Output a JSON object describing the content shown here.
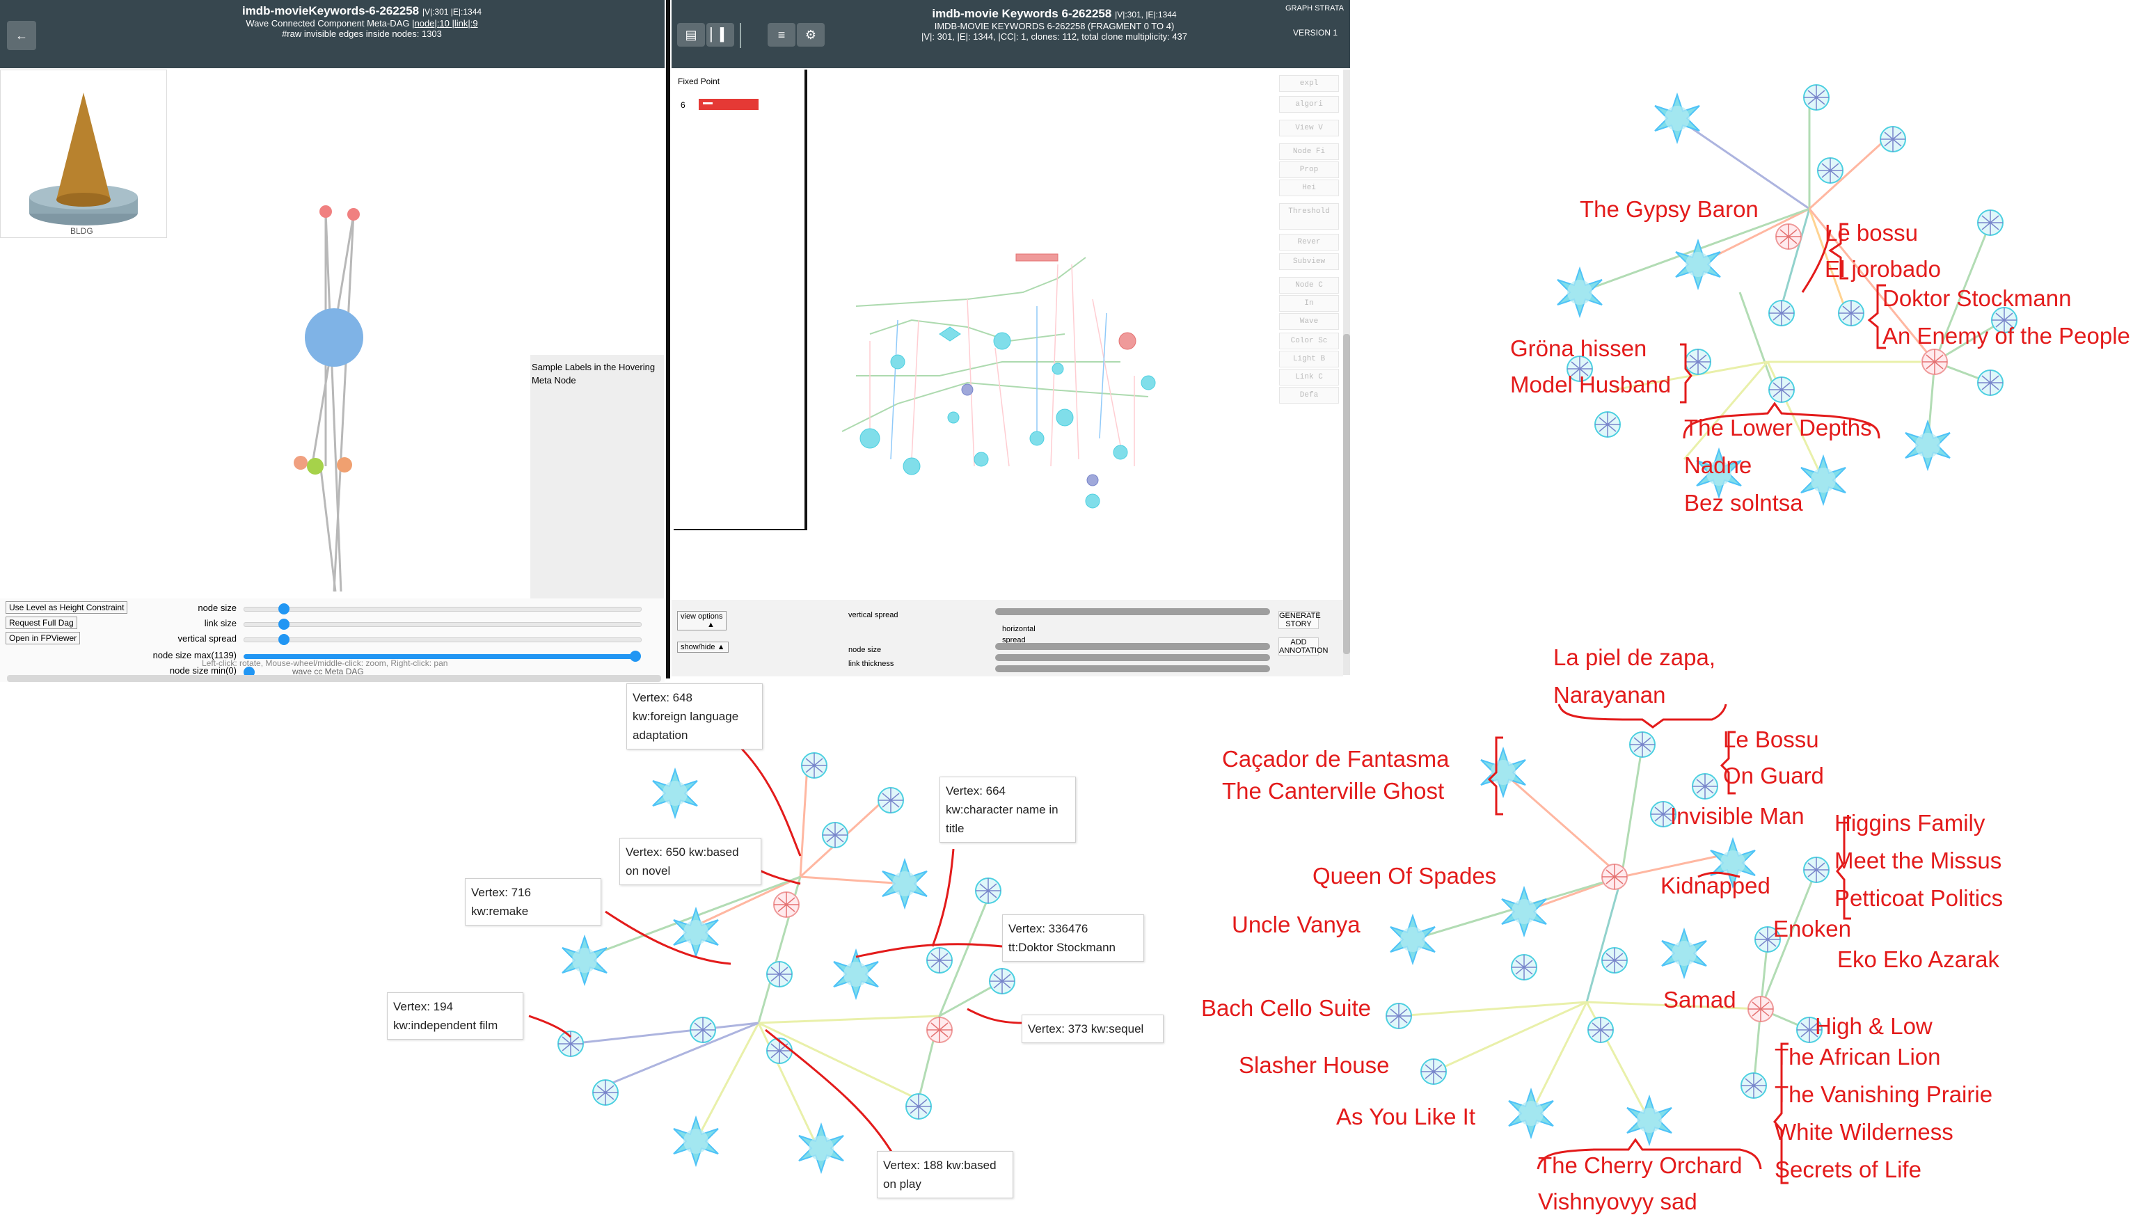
{
  "left_panel": {
    "back_icon": "arrow-left-icon",
    "title": "imdb-movieKeywords-6-262258",
    "title_stats": "|V|:301 |E|:1344",
    "subtitle": "Wave Connected Component Meta-DAG",
    "subtitle_links": "|node|:10  |link|:9",
    "raw_edges": "#raw invisible edges inside nodes: 1303",
    "building_label": "BLDG",
    "hover_label": "Sample Labels in the Hovering Meta Node",
    "buttons": [
      "Use Level as Height Constraint",
      "Request Full Dag",
      "Open in FPViewer"
    ],
    "sliders": [
      {
        "label": "node size",
        "value": 0.06
      },
      {
        "label": "link size",
        "value": 0.06
      },
      {
        "label": "vertical spread",
        "value": 0.06
      },
      {
        "label": "node size max(1139)",
        "value": 1.0
      },
      {
        "label": "node size min(0)",
        "value": 0.0
      }
    ],
    "status_line": "Left-click: rotate, Mouse-wheel/middle-click: zoom, Right-click: pan",
    "footer_line": "wave cc Meta DAG"
  },
  "right_panel": {
    "title": "imdb-movie Keywords 6-262258",
    "title_stats": "|V|:301, |E|:1344",
    "line2": "IMDB-MOVIE KEYWORDS 6-262258 (FRAGMENT 0 TO 4)",
    "line3": "|V|: 301, |E|: 1344, |CC|: 1, clones: 112, total clone multiplicity: 437",
    "strata_title": "GRAPH STRATA",
    "version": "VERSION 1",
    "toolbar_icons": [
      "database-icon",
      "chart-icon",
      "list-icon",
      "gear-icon"
    ],
    "fixed_point_title": "Fixed Point",
    "fixed_point_row": "6",
    "side_buttons": [
      "expl",
      "algori",
      "View V",
      "Node Fi",
      "Prop",
      "Hei",
      "Threshold",
      "Rever",
      "Subview",
      "Node C",
      "In",
      "Wave",
      "Color Sc",
      "Light B",
      "Link C",
      "Defa"
    ],
    "view_options": "view options",
    "show_hide": "show/hide",
    "bottom_labels": [
      "vertical spread",
      "node size",
      "link thickness"
    ],
    "bottom_labels2": [
      "horizontal spread"
    ],
    "generate_story": "GENERATE STORY",
    "add_annotation": "ADD ANNOTATION"
  },
  "tooltips": [
    {
      "id": "t648",
      "text": [
        "Vertex: 648",
        "kw:foreign language",
        "adaptation"
      ]
    },
    {
      "id": "t664",
      "text": [
        "Vertex: 664",
        "kw:character name in",
        "title"
      ]
    },
    {
      "id": "t650",
      "text": [
        "Vertex: 650 kw:based",
        "on novel"
      ]
    },
    {
      "id": "t716",
      "text": [
        "Vertex: 716",
        "kw:remake"
      ]
    },
    {
      "id": "t336476",
      "text": [
        "Vertex: 336476",
        "tt:Doktor Stockmann"
      ]
    },
    {
      "id": "t194",
      "text": [
        "Vertex: 194",
        "kw:independent film"
      ]
    },
    {
      "id": "t373",
      "text": [
        "Vertex: 373 kw:sequel"
      ]
    },
    {
      "id": "t188",
      "text": [
        "Vertex: 188 kw:based",
        "on play"
      ]
    }
  ],
  "annotations_top": [
    "The Gypsy Baron",
    "Le bossu",
    "El jorobado",
    "Doktor Stockmann",
    "An Enemy of the People",
    "Gröna hissen",
    "Model Husband",
    "The Lower Depths",
    "Nadne",
    "Bez solntsa"
  ],
  "annotations_bottom": [
    "La piel de zapa,",
    "Narayanan",
    "Caçador de Fantasma",
    "The Canterville Ghost",
    "Le Bossu",
    "On Guard",
    "Invisible Man",
    "Higgins Family",
    "Meet the Missus",
    "Petticoat Politics",
    "Queen Of Spades",
    "Kidnapped",
    "Uncle Vanya",
    "Enoken",
    "Eko Eko Azarak",
    "Bach Cello Suite",
    "Samad",
    "High & Low",
    "The African Lion",
    "The Vanishing Prairie",
    "Slasher House",
    "White Wilderness",
    "As You Like It",
    "Secrets of Life",
    "The Cherry Orchard",
    "Vishnyovyy sad"
  ],
  "colors": {
    "header": "#37474f",
    "accent": "#2196f3",
    "annotation": "#e31b1b",
    "fixed_point": "#e53935"
  }
}
